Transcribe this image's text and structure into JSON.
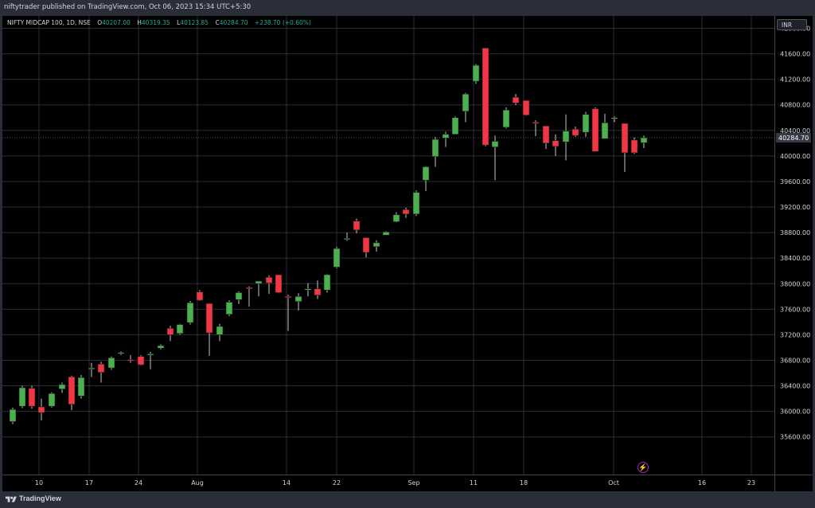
{
  "header": {
    "publisher": "niftytrader published on TradingView.com, Oct 06, 2023 15:34 UTC+5:30"
  },
  "legend": {
    "symbol": "NIFTY MIDCAP 100, 1D, NSE",
    "open_key": "O",
    "open": "40207.00",
    "high_key": "H",
    "high": "40319.35",
    "low_key": "L",
    "low": "40123.85",
    "close_key": "C",
    "close": "40284.70",
    "change": "+238.70 (+0.60%)"
  },
  "currency": "INR",
  "footer": {
    "brand": "TradingView"
  },
  "bolt_icon": "⚡",
  "colors": {
    "up": "#4caf50",
    "down": "#f23645",
    "background": "#000000",
    "grid": "#2a2e39",
    "axis_text": "#d1d4dc",
    "last_price": "#363a45"
  },
  "chart_data": {
    "type": "candlestick",
    "ylim": [
      35300,
      42400
    ],
    "y_ticks": [
      "35600.00",
      "36000.00",
      "36400.00",
      "36800.00",
      "37200.00",
      "37600.00",
      "38000.00",
      "38400.00",
      "38800.00",
      "39200.00",
      "39600.00",
      "40000.00",
      "40400.00",
      "40800.00",
      "41200.00",
      "41600.00",
      "42000.00"
    ],
    "x_ticks": [
      "10",
      "17",
      "24",
      "Aug",
      "14",
      "22",
      "Sep",
      "11",
      "18",
      "Oct",
      "16",
      "23"
    ],
    "last_price_label": "40284.70",
    "candles": [
      {
        "o": 35840,
        "h": 36060,
        "l": 35800,
        "c": 36030
      },
      {
        "o": 36080,
        "h": 36400,
        "l": 36050,
        "c": 36370
      },
      {
        "o": 36360,
        "h": 36400,
        "l": 36040,
        "c": 36080
      },
      {
        "o": 36070,
        "h": 36200,
        "l": 35860,
        "c": 35980
      },
      {
        "o": 36080,
        "h": 36300,
        "l": 36060,
        "c": 36280
      },
      {
        "o": 36350,
        "h": 36450,
        "l": 36290,
        "c": 36420
      },
      {
        "o": 36540,
        "h": 36560,
        "l": 36020,
        "c": 36110
      },
      {
        "o": 36240,
        "h": 36570,
        "l": 36200,
        "c": 36530
      },
      {
        "o": 36660,
        "h": 36760,
        "l": 36540,
        "c": 36680
      },
      {
        "o": 36740,
        "h": 36780,
        "l": 36450,
        "c": 36610
      },
      {
        "o": 36680,
        "h": 36860,
        "l": 36650,
        "c": 36840
      },
      {
        "o": 36910,
        "h": 36940,
        "l": 36880,
        "c": 36920
      },
      {
        "o": 36810,
        "h": 36880,
        "l": 36760,
        "c": 36800
      },
      {
        "o": 36860,
        "h": 36880,
        "l": 36720,
        "c": 36730
      },
      {
        "o": 36880,
        "h": 36930,
        "l": 36660,
        "c": 36900
      },
      {
        "o": 36990,
        "h": 37050,
        "l": 36970,
        "c": 37030
      },
      {
        "o": 37300,
        "h": 37340,
        "l": 37100,
        "c": 37200
      },
      {
        "o": 37220,
        "h": 37370,
        "l": 37200,
        "c": 37360
      },
      {
        "o": 37390,
        "h": 37730,
        "l": 37360,
        "c": 37700
      },
      {
        "o": 37870,
        "h": 37900,
        "l": 37730,
        "c": 37740
      },
      {
        "o": 37690,
        "h": 37690,
        "l": 36870,
        "c": 37230
      },
      {
        "o": 37200,
        "h": 37370,
        "l": 37100,
        "c": 37330
      },
      {
        "o": 37520,
        "h": 37740,
        "l": 37490,
        "c": 37710
      },
      {
        "o": 37750,
        "h": 37880,
        "l": 37680,
        "c": 37860
      },
      {
        "o": 37940,
        "h": 37960,
        "l": 37640,
        "c": 37920
      },
      {
        "o": 38000,
        "h": 38040,
        "l": 37800,
        "c": 38040
      },
      {
        "o": 38100,
        "h": 38130,
        "l": 37840,
        "c": 38010
      },
      {
        "o": 38140,
        "h": 38140,
        "l": 37850,
        "c": 37860
      },
      {
        "o": 37800,
        "h": 37830,
        "l": 37260,
        "c": 37790
      },
      {
        "o": 37720,
        "h": 37850,
        "l": 37580,
        "c": 37800
      },
      {
        "o": 37900,
        "h": 38010,
        "l": 37800,
        "c": 37920
      },
      {
        "o": 37920,
        "h": 38050,
        "l": 37760,
        "c": 37820
      },
      {
        "o": 37900,
        "h": 38150,
        "l": 37860,
        "c": 38140
      },
      {
        "o": 38260,
        "h": 38580,
        "l": 38240,
        "c": 38550
      },
      {
        "o": 38710,
        "h": 38800,
        "l": 38670,
        "c": 38710
      },
      {
        "o": 38980,
        "h": 39020,
        "l": 38790,
        "c": 38840
      },
      {
        "o": 38720,
        "h": 38720,
        "l": 38410,
        "c": 38490
      },
      {
        "o": 38580,
        "h": 38680,
        "l": 38500,
        "c": 38640
      },
      {
        "o": 38760,
        "h": 38820,
        "l": 38760,
        "c": 38810
      },
      {
        "o": 38970,
        "h": 39120,
        "l": 38960,
        "c": 39080
      },
      {
        "o": 39160,
        "h": 39190,
        "l": 39030,
        "c": 39090
      },
      {
        "o": 39090,
        "h": 39460,
        "l": 39060,
        "c": 39430
      },
      {
        "o": 39620,
        "h": 39840,
        "l": 39450,
        "c": 39830
      },
      {
        "o": 39990,
        "h": 40300,
        "l": 39830,
        "c": 40260
      },
      {
        "o": 40280,
        "h": 40380,
        "l": 40140,
        "c": 40340
      },
      {
        "o": 40340,
        "h": 40620,
        "l": 40340,
        "c": 40600
      },
      {
        "o": 40700,
        "h": 40990,
        "l": 40530,
        "c": 40970
      },
      {
        "o": 41170,
        "h": 41440,
        "l": 41130,
        "c": 41420
      },
      {
        "o": 41690,
        "h": 41690,
        "l": 40150,
        "c": 40170
      },
      {
        "o": 40140,
        "h": 40320,
        "l": 39620,
        "c": 40230
      },
      {
        "o": 40450,
        "h": 40760,
        "l": 40430,
        "c": 40720
      },
      {
        "o": 40920,
        "h": 40970,
        "l": 40800,
        "c": 40830
      },
      {
        "o": 40870,
        "h": 40870,
        "l": 40630,
        "c": 40640
      },
      {
        "o": 40530,
        "h": 40560,
        "l": 40310,
        "c": 40510
      },
      {
        "o": 40470,
        "h": 40470,
        "l": 40110,
        "c": 40200
      },
      {
        "o": 40240,
        "h": 40340,
        "l": 40000,
        "c": 40150
      },
      {
        "o": 40220,
        "h": 40650,
        "l": 39930,
        "c": 40390
      },
      {
        "o": 40420,
        "h": 40460,
        "l": 40300,
        "c": 40320
      },
      {
        "o": 40370,
        "h": 40690,
        "l": 40300,
        "c": 40650
      },
      {
        "o": 40740,
        "h": 40760,
        "l": 40080,
        "c": 40070
      },
      {
        "o": 40270,
        "h": 40660,
        "l": 40270,
        "c": 40520
      },
      {
        "o": 40580,
        "h": 40620,
        "l": 40530,
        "c": 40600
      },
      {
        "o": 40510,
        "h": 40510,
        "l": 39750,
        "c": 40050
      },
      {
        "o": 40250,
        "h": 40290,
        "l": 40030,
        "c": 40050
      },
      {
        "o": 40207,
        "h": 40319.35,
        "l": 40123.85,
        "c": 40284.7
      }
    ]
  }
}
